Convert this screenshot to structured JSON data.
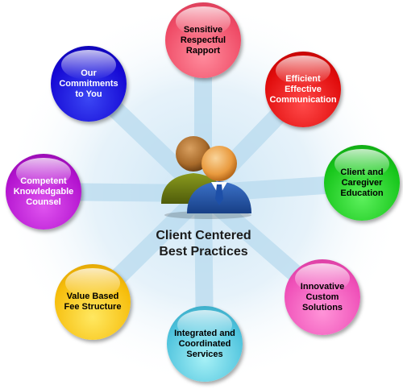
{
  "diagram": {
    "center_title": "Client Centered\nBest Practices",
    "center_icon": "two-people-icon",
    "nodes": [
      {
        "label": "Sensitive\nRespectful\nRapport",
        "color": "#ef4b66"
      },
      {
        "label": "Efficient\nEffective\nCommunication",
        "color": "#e00b0b"
      },
      {
        "label": "Client and\nCaregiver\nEducation",
        "color": "#16c51a"
      },
      {
        "label": "Innovative\nCustom\nSolutions",
        "color": "#ef4fb8"
      },
      {
        "label": "Integrated and\nCoordinated\nServices",
        "color": "#4ec3dd"
      },
      {
        "label": "Value Based\nFee Structure",
        "color": "#f6bd0b"
      },
      {
        "label": "Competent\nKnowledgable\nCounsel",
        "color": "#b313cf"
      },
      {
        "label": "Our\nCommitments\nto You",
        "color": "#1508d4"
      }
    ]
  }
}
